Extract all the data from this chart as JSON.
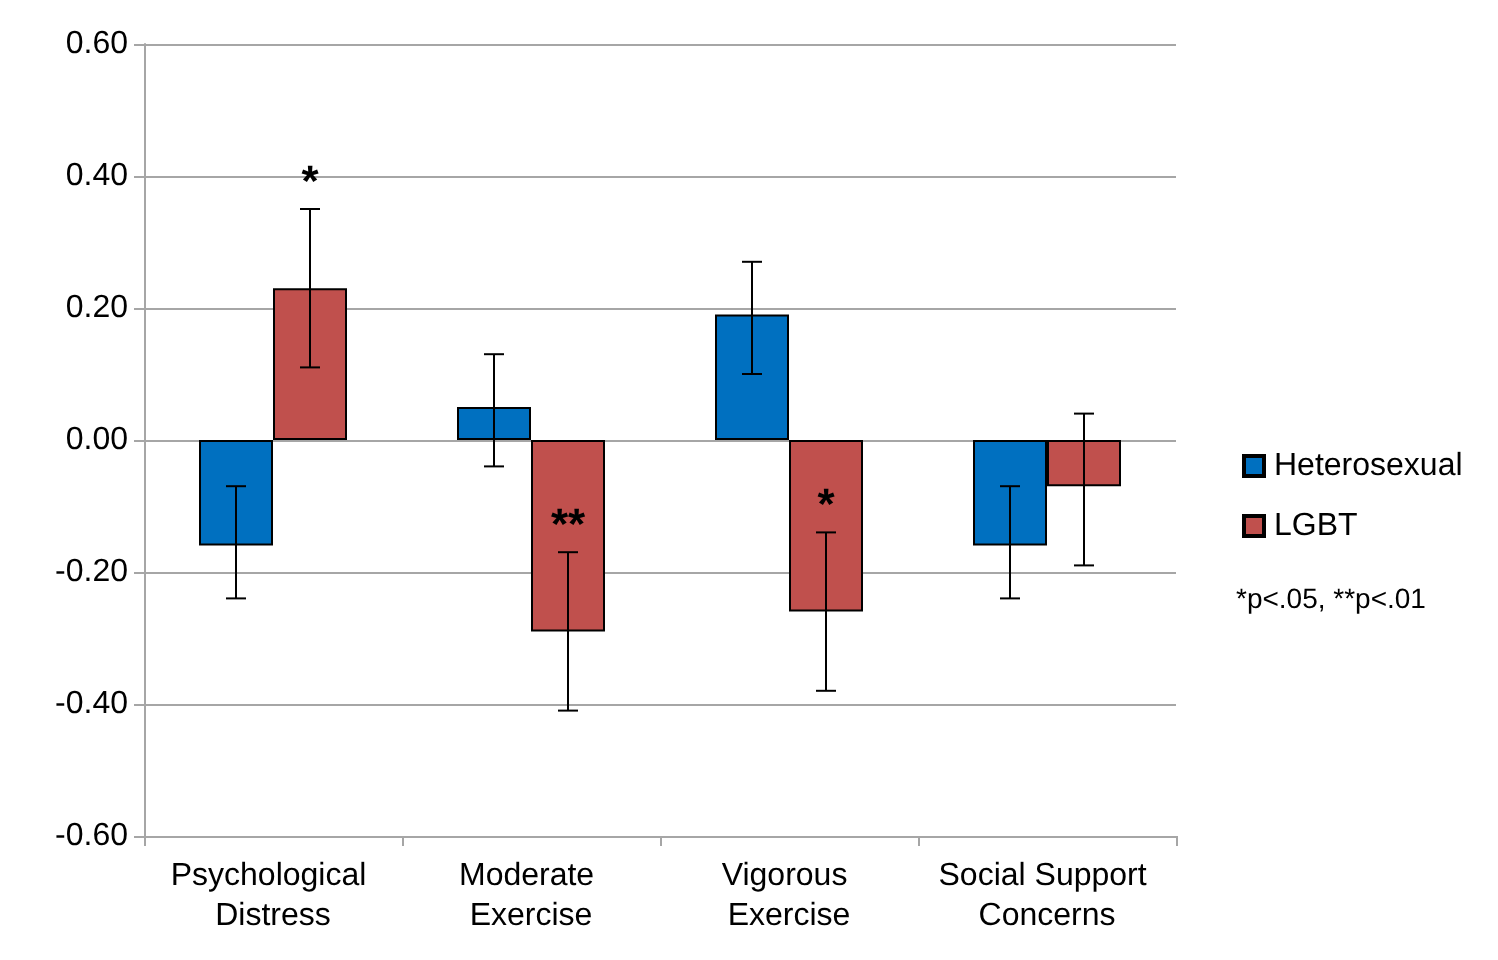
{
  "chart_data": {
    "type": "bar",
    "categories": [
      "Psychological Distress",
      "Moderate Exercise",
      "Vigorous Exercise",
      "Social Support Concerns"
    ],
    "series": [
      {
        "name": "Heterosexual",
        "color": "#0070c0",
        "values": [
          -0.16,
          0.05,
          0.19,
          -0.16
        ],
        "errors": [
          [
            -0.24,
            -0.07
          ],
          [
            -0.04,
            0.13
          ],
          [
            0.1,
            0.27
          ],
          [
            -0.24,
            -0.07
          ]
        ]
      },
      {
        "name": "LGBT",
        "color": "#c0504d",
        "values": [
          0.23,
          -0.29,
          -0.26,
          -0.07
        ],
        "errors": [
          [
            0.11,
            0.35
          ],
          [
            -0.41,
            -0.17
          ],
          [
            -0.38,
            -0.14
          ],
          [
            -0.19,
            0.04
          ]
        ],
        "value_labels": [
          "*",
          "**",
          "*",
          null
        ]
      }
    ],
    "ylim": [
      -0.6,
      0.6
    ],
    "yticks": [
      {
        "value": -0.6,
        "label": "-0.60"
      },
      {
        "value": -0.4,
        "label": "-0.40"
      },
      {
        "value": -0.2,
        "label": "-0.20"
      },
      {
        "value": 0,
        "label": "0.00"
      },
      {
        "value": 0.2,
        "label": "0.20"
      },
      {
        "value": 0.4,
        "label": "0.40"
      },
      {
        "value": 0.6,
        "label": "0.60"
      }
    ],
    "grid": "y",
    "legend": "right",
    "annotations": [
      "*p<.05, **p<.01"
    ]
  }
}
